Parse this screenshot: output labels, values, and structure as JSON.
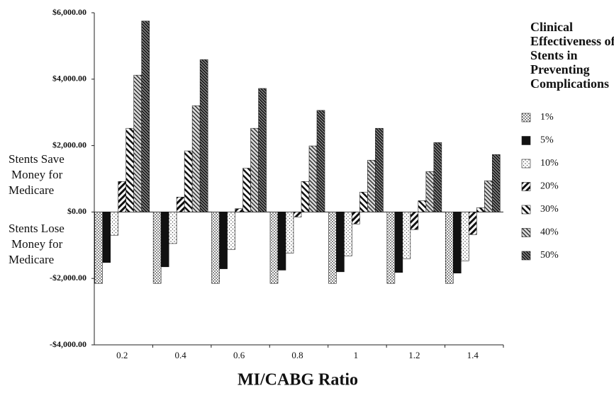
{
  "chart_data": {
    "type": "bar",
    "x_label": "MI/CABG Ratio",
    "legend_title": [
      "Clinical",
      "Effectiveness of",
      "Stents in",
      "Preventing",
      "Complications"
    ],
    "annotations": [
      [
        "Stents Save",
        "Money for",
        "Medicare"
      ],
      [
        "Stents Lose",
        "Money for",
        "Medicare"
      ]
    ],
    "categories": [
      "0.2",
      "0.4",
      "0.6",
      "0.8",
      "1",
      "1.2",
      "1.4"
    ],
    "series": [
      {
        "name": "1%",
        "color": "#bbbbbb",
        "values": [
          -2150,
          -2150,
          -2150,
          -2150,
          -2150,
          -2150,
          -2150
        ]
      },
      {
        "name": "5%",
        "color": "#111111",
        "values": [
          -1520,
          -1650,
          -1710,
          -1750,
          -1800,
          -1820,
          -1840
        ]
      },
      {
        "name": "10%",
        "color": "#cccccc",
        "values": [
          -700,
          -950,
          -1130,
          -1240,
          -1320,
          -1410,
          -1470
        ]
      },
      {
        "name": "20%",
        "color": "#222222",
        "values": [
          920,
          450,
          100,
          -150,
          -360,
          -530,
          -680
        ]
      },
      {
        "name": "30%",
        "color": "#333333",
        "values": [
          2520,
          1840,
          1320,
          920,
          600,
          340,
          130
        ]
      },
      {
        "name": "40%",
        "color": "#888888",
        "values": [
          4120,
          3200,
          2520,
          1990,
          1560,
          1220,
          940
        ]
      },
      {
        "name": "50%",
        "color": "#444444",
        "values": [
          5750,
          4590,
          3720,
          3060,
          2520,
          2090,
          1730
        ]
      }
    ],
    "ylim": [
      -4000,
      6000
    ],
    "yticks": [
      {
        "value": -4000,
        "label": "-$4,000.00"
      },
      {
        "value": -2000,
        "label": "-$2,000.00"
      },
      {
        "value": 0,
        "label": "$0.00"
      },
      {
        "value": 2000,
        "label": "$2,000.00"
      },
      {
        "value": 4000,
        "label": "$4,000.00"
      },
      {
        "value": 6000,
        "label": "$6,000.00"
      }
    ]
  }
}
